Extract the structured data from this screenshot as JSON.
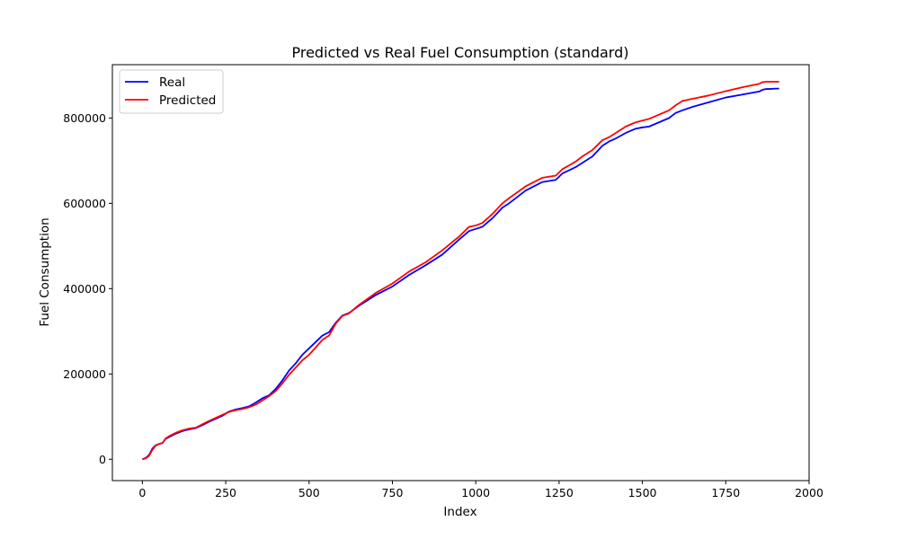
{
  "chart_data": {
    "type": "line",
    "title": "Predicted vs Real Fuel Consumption (standard)",
    "xlabel": "Index",
    "ylabel": "Fuel Consumption",
    "xlim": [
      -90,
      2000
    ],
    "ylim": [
      -50000,
      925000
    ],
    "x_ticks": [
      0,
      250,
      500,
      750,
      1000,
      1250,
      1500,
      1750,
      2000
    ],
    "y_ticks": [
      0,
      200000,
      400000,
      600000,
      800000
    ],
    "legend_placement": "upper-left",
    "grid": false,
    "x": [
      0,
      10,
      20,
      30,
      40,
      50,
      60,
      70,
      80,
      100,
      120,
      140,
      160,
      180,
      200,
      220,
      240,
      260,
      280,
      300,
      320,
      340,
      360,
      380,
      400,
      420,
      440,
      460,
      480,
      500,
      520,
      540,
      560,
      580,
      600,
      620,
      650,
      700,
      750,
      800,
      850,
      900,
      950,
      980,
      1000,
      1020,
      1050,
      1080,
      1100,
      1150,
      1200,
      1240,
      1260,
      1300,
      1320,
      1350,
      1380,
      1400,
      1420,
      1450,
      1480,
      1500,
      1520,
      1550,
      1580,
      1600,
      1620,
      1650,
      1700,
      1750,
      1800,
      1850,
      1860,
      1870,
      1880,
      1900,
      1910
    ],
    "series": [
      {
        "name": "Real",
        "color": "#0000ff",
        "values": [
          0,
          3000,
          10000,
          25000,
          33000,
          36000,
          38000,
          48000,
          52000,
          60000,
          66000,
          70000,
          73000,
          80000,
          88000,
          95000,
          102000,
          112000,
          117000,
          120000,
          124000,
          133000,
          143000,
          150000,
          165000,
          185000,
          208000,
          225000,
          245000,
          260000,
          275000,
          290000,
          298000,
          320000,
          337000,
          343000,
          360000,
          385000,
          405000,
          432000,
          455000,
          480000,
          515000,
          535000,
          540000,
          545000,
          565000,
          590000,
          600000,
          630000,
          650000,
          655000,
          670000,
          685000,
          695000,
          710000,
          735000,
          745000,
          752000,
          765000,
          775000,
          778000,
          780000,
          790000,
          800000,
          812000,
          818000,
          826000,
          837000,
          848000,
          855000,
          862000,
          866000,
          868000,
          868000,
          869000,
          869000
        ]
      },
      {
        "name": "Predicted",
        "color": "#ff0000",
        "values": [
          0,
          2000,
          8000,
          22000,
          32000,
          36000,
          38000,
          49000,
          54000,
          62000,
          68000,
          72000,
          74000,
          82000,
          90000,
          97000,
          104000,
          111000,
          115000,
          118000,
          122000,
          128000,
          138000,
          148000,
          160000,
          178000,
          198000,
          215000,
          232000,
          245000,
          262000,
          280000,
          290000,
          318000,
          336000,
          342000,
          362000,
          390000,
          412000,
          440000,
          462000,
          490000,
          522000,
          545000,
          548000,
          554000,
          575000,
          600000,
          612000,
          640000,
          660000,
          665000,
          680000,
          698000,
          710000,
          725000,
          748000,
          755000,
          765000,
          780000,
          790000,
          794000,
          798000,
          808000,
          818000,
          830000,
          840000,
          845000,
          853000,
          863000,
          872000,
          880000,
          884000,
          885000,
          885000,
          885000,
          885000
        ]
      }
    ]
  }
}
